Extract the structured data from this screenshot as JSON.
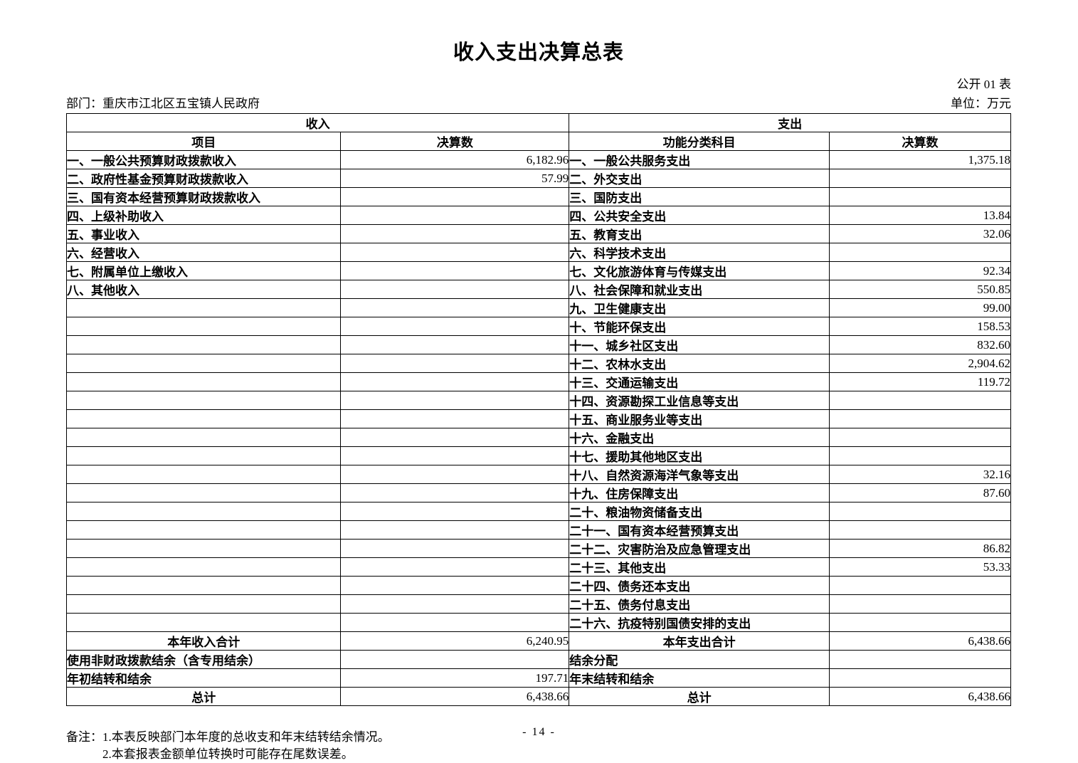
{
  "page": {
    "title": "收入支出决算总表",
    "table_code": "公开 01 表",
    "department": "部门：重庆市江北区五宝镇人民政府",
    "unit": "单位：万元",
    "page_number": "- 14 -"
  },
  "notes": {
    "label": "备注：",
    "lines": [
      "1.本表反映部门本年度的总收支和年末结转结余情况。",
      "2.本套报表金额单位转换时可能存在尾数误差。"
    ]
  },
  "table": {
    "section_headers": {
      "income": "收入",
      "expenditure": "支出"
    },
    "column_headers": {
      "income_item": "项目",
      "income_value": "决算数",
      "expense_item": "功能分类科目",
      "expense_value": "决算数"
    },
    "rows": [
      {
        "income_item": "一、一般公共预算财政拨款收入",
        "income_value": "6,182.96",
        "expense_item": "一、一般公共服务支出",
        "expense_value": "1,375.18"
      },
      {
        "income_item": "二、政府性基金预算财政拨款收入",
        "income_value": "57.99",
        "expense_item": "二、外交支出",
        "expense_value": ""
      },
      {
        "income_item": "三、国有资本经营预算财政拨款收入",
        "income_value": "",
        "expense_item": "三、国防支出",
        "expense_value": ""
      },
      {
        "income_item": "四、上级补助收入",
        "income_value": "",
        "expense_item": "四、公共安全支出",
        "expense_value": "13.84"
      },
      {
        "income_item": "五、事业收入",
        "income_value": "",
        "expense_item": "五、教育支出",
        "expense_value": "32.06"
      },
      {
        "income_item": "六、经营收入",
        "income_value": "",
        "expense_item": "六、科学技术支出",
        "expense_value": ""
      },
      {
        "income_item": "七、附属单位上缴收入",
        "income_value": "",
        "expense_item": "七、文化旅游体育与传媒支出",
        "expense_value": "92.34"
      },
      {
        "income_item": "八、其他收入",
        "income_value": "",
        "expense_item": "八、社会保障和就业支出",
        "expense_value": "550.85"
      },
      {
        "income_item": "",
        "income_value": "",
        "expense_item": "九、卫生健康支出",
        "expense_value": "99.00"
      },
      {
        "income_item": "",
        "income_value": "",
        "expense_item": "十、节能环保支出",
        "expense_value": "158.53"
      },
      {
        "income_item": "",
        "income_value": "",
        "expense_item": "十一、城乡社区支出",
        "expense_value": "832.60"
      },
      {
        "income_item": "",
        "income_value": "",
        "expense_item": "十二、农林水支出",
        "expense_value": "2,904.62"
      },
      {
        "income_item": "",
        "income_value": "",
        "expense_item": "十三、交通运输支出",
        "expense_value": "119.72"
      },
      {
        "income_item": "",
        "income_value": "",
        "expense_item": "十四、资源勘探工业信息等支出",
        "expense_value": ""
      },
      {
        "income_item": "",
        "income_value": "",
        "expense_item": "十五、商业服务业等支出",
        "expense_value": ""
      },
      {
        "income_item": "",
        "income_value": "",
        "expense_item": "十六、金融支出",
        "expense_value": ""
      },
      {
        "income_item": "",
        "income_value": "",
        "expense_item": "十七、援助其他地区支出",
        "expense_value": ""
      },
      {
        "income_item": "",
        "income_value": "",
        "expense_item": "十八、自然资源海洋气象等支出",
        "expense_value": "32.16"
      },
      {
        "income_item": "",
        "income_value": "",
        "expense_item": "十九、住房保障支出",
        "expense_value": "87.60"
      },
      {
        "income_item": "",
        "income_value": "",
        "expense_item": "二十、粮油物资储备支出",
        "expense_value": ""
      },
      {
        "income_item": "",
        "income_value": "",
        "expense_item": "二十一、国有资本经营预算支出",
        "expense_value": ""
      },
      {
        "income_item": "",
        "income_value": "",
        "expense_item": "二十二、灾害防治及应急管理支出",
        "expense_value": "86.82"
      },
      {
        "income_item": "",
        "income_value": "",
        "expense_item": "二十三、其他支出",
        "expense_value": "53.33"
      },
      {
        "income_item": "",
        "income_value": "",
        "expense_item": "二十四、债务还本支出",
        "expense_value": ""
      },
      {
        "income_item": "",
        "income_value": "",
        "expense_item": "二十五、债务付息支出",
        "expense_value": ""
      },
      {
        "income_item": "",
        "income_value": "",
        "expense_item": "二十六、抗疫特别国债安排的支出",
        "expense_value": ""
      }
    ],
    "footer_rows": [
      {
        "income_item": "本年收入合计",
        "income_value": "6,240.95",
        "expense_item": "本年支出合计",
        "expense_value": "6,438.66",
        "align": "center"
      },
      {
        "income_item": "使用非财政拨款结余（含专用结余）",
        "income_value": "",
        "expense_item": "结余分配",
        "expense_value": "",
        "align": "left"
      },
      {
        "income_item": "年初结转和结余",
        "income_value": "197.71",
        "expense_item": "年末结转和结余",
        "expense_value": "",
        "align": "left"
      },
      {
        "income_item": "总计",
        "income_value": "6,438.66",
        "expense_item": "总计",
        "expense_value": "6,438.66",
        "align": "center"
      }
    ]
  }
}
